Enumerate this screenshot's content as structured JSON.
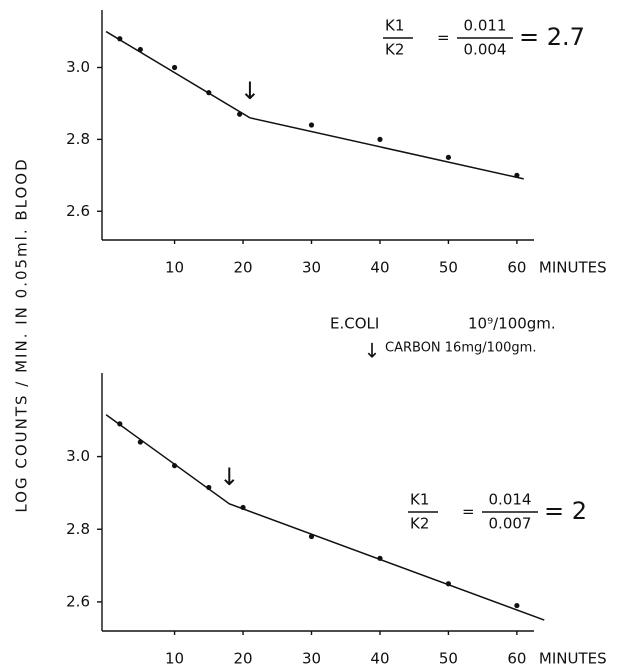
{
  "ylabel": "LOG COUNTS / MIN. IN 0.05ml. BLOOD",
  "legend": {
    "line1_name": "E.COLI",
    "line1_dose": "10⁹/100gm.",
    "line2_name": "CARBON 16mg/100gm."
  },
  "chart_data": [
    {
      "type": "scatter",
      "xlabel": "MINUTES",
      "x": [
        2,
        5,
        10,
        15,
        19.5,
        30,
        40,
        50,
        60
      ],
      "values": [
        3.08,
        3.05,
        3.0,
        2.93,
        2.87,
        2.84,
        2.8,
        2.75,
        2.7
      ],
      "fit_line": {
        "x": [
          0,
          21,
          61
        ],
        "values": [
          3.1,
          2.86,
          2.69
        ]
      },
      "arrow_x": 21,
      "ratio": {
        "k1": "K1",
        "k2": "K2",
        "eq": "=",
        "num": "0.011",
        "den": "0.004",
        "result": "= 2.7"
      },
      "xlim": [
        -0.6,
        62.5
      ],
      "ylim": [
        2.52,
        3.16
      ],
      "xticks": [
        10,
        20,
        30,
        40,
        50,
        60
      ],
      "yticks": [
        {
          "value": 2.6,
          "label": "2.6"
        },
        {
          "value": 2.8,
          "label": "2.8"
        },
        {
          "value": 3.0,
          "label": "3.0"
        }
      ],
      "color": "#111111"
    },
    {
      "type": "scatter",
      "xlabel": "MINUTES",
      "x": [
        2,
        5,
        10,
        15,
        20,
        30,
        40,
        50,
        60
      ],
      "values": [
        3.09,
        3.04,
        2.975,
        2.915,
        2.86,
        2.78,
        2.72,
        2.65,
        2.59
      ],
      "fit_line": {
        "x": [
          0,
          18,
          64
        ],
        "values": [
          3.115,
          2.87,
          2.55
        ]
      },
      "arrow_x": 18,
      "ratio": {
        "k1": "K1",
        "k2": "K2",
        "eq": "=",
        "num": "0.014",
        "den": "0.007",
        "result": "= 2"
      },
      "xlim": [
        -0.6,
        62.5
      ],
      "ylim": [
        2.52,
        3.23
      ],
      "xticks": [
        10,
        20,
        30,
        40,
        50,
        60
      ],
      "yticks": [
        {
          "value": 2.6,
          "label": "2.6"
        },
        {
          "value": 2.8,
          "label": "2.8"
        },
        {
          "value": 3.0,
          "label": "3.0"
        }
      ],
      "color": "#111111"
    }
  ]
}
